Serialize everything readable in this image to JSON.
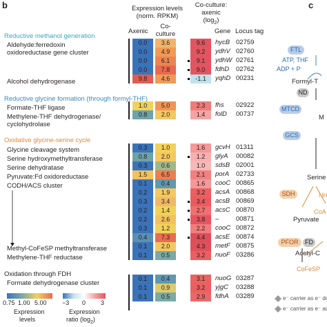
{
  "panel_b": "b",
  "panel_c": "c",
  "header": {
    "expr_title1": "Expression levels",
    "expr_title2": "(norm. RPKM)",
    "axenic": "Axenic",
    "coculture1": "Co-",
    "coculture2": "culture",
    "ratio1": "Co-culture:",
    "ratio2": "axenic",
    "ratio3": "(log",
    "ratio3_sub": "2",
    "ratio3_end": ")",
    "gene": "Gene",
    "locus": "Locus tag"
  },
  "sections": [
    {
      "title": "Reductive methanol generation",
      "color": "#3aa6c0"
    },
    {
      "title": "Reductive glycine formation (through formyl-THF)",
      "color": "#3a86c0"
    },
    {
      "title": "Oxidative glycine-serine cycle",
      "color": "#e08a3a"
    },
    {
      "title": "Oxidation through FDH",
      "color": "#231f20"
    }
  ],
  "labels": {
    "ald1": "Aldehyde:ferredoxin",
    "ald2": "oxidoreductase gene cluster",
    "adh": "Alcohol dehydrogenase",
    "fthl": "Formate-THF ligase",
    "mthfd1": "Methylene-THF dehydrogenase/",
    "mthfd2": "cyclohydrolase",
    "gcs": "Glycine cleavage system",
    "shmt": "Serine hydroxymethyltransferase",
    "sdh": "Serine dehydratase",
    "pfor": "Pyruvate:Fd oxidoreductase",
    "codh": "CODH/ACS cluster",
    "mtr": "Methyl-CoFeSP methyltransferase",
    "mthfr": "Methylene-THF reductase",
    "fdh": "Formate dehydrogenase cluster"
  },
  "rows": [
    {
      "axenic": "0.0",
      "cocult": "3.6",
      "ratio": "9.6",
      "gene": "hycB",
      "tag": "02759",
      "sig": false,
      "ac": "#3b73b9",
      "cc": "#f0b46a",
      "rc": "#e05560"
    },
    {
      "axenic": "0.0",
      "cocult": "4.9",
      "ratio": "9.2",
      "gene": "ydhV",
      "tag": "02760",
      "sig": false,
      "ac": "#3b73b9",
      "cc": "#f09a55",
      "rc": "#e05560"
    },
    {
      "axenic": "0.0",
      "cocult": "6.1",
      "ratio": "9.1",
      "gene": "ydhW",
      "tag": "02761",
      "sig": true,
      "ac": "#3b73b9",
      "cc": "#ec8550",
      "rc": "#e05560"
    },
    {
      "axenic": "0.0",
      "cocult": "7.8",
      "ratio": "9.0",
      "gene": "fdhD",
      "tag": "02762",
      "sig": true,
      "ac": "#3b73b9",
      "cc": "#e86a50",
      "rc": "#e05560"
    },
    {
      "axenic": "9.8",
      "cocult": "4.6",
      "ratio": "-1.1",
      "gene": "yqhD",
      "tag": "00231",
      "sig": true,
      "ac": "#e05c50",
      "cc": "#f09a55",
      "rc": "#bfe2ec"
    },
    {
      "axenic": "1.0",
      "cocult": "5.0",
      "ratio": "2.3",
      "gene": "fhs",
      "tag": "02922",
      "sig": false,
      "ac": "#f2d15a",
      "cc": "#ef9555",
      "rc": "#f07b7b"
    },
    {
      "axenic": "0.8",
      "cocult": "2.0",
      "ratio": "1.4",
      "gene": "folD",
      "tag": "00737",
      "sig": false,
      "ac": "#6ea3a8",
      "cc": "#f3c860",
      "rc": "#f5a3a3"
    },
    {
      "axenic": "0.3",
      "cocult": "1.0",
      "ratio": "1.6",
      "gene": "gcvH",
      "tag": "01311",
      "sig": false,
      "ac": "#3b73b9",
      "cc": "#f2d15a",
      "rc": "#f59898"
    },
    {
      "axenic": "0.8",
      "cocult": "2.0",
      "ratio": "1.2",
      "gene": "glyA",
      "tag": "00082",
      "sig": true,
      "ac": "#6ea3a8",
      "cc": "#f3c860",
      "rc": "#f7b0b0"
    },
    {
      "axenic": "0.3",
      "cocult": "0.6",
      "ratio": "1.0",
      "gene": "sdsB",
      "tag": "02001",
      "sig": false,
      "ac": "#3b73b9",
      "cc": "#9fb88a",
      "rc": "#f7b8b8"
    },
    {
      "axenic": "1.5",
      "cocult": "6.5",
      "ratio": "2.1",
      "gene": "porA",
      "tag": "02733",
      "sig": false,
      "ac": "#f2c25c",
      "cc": "#ec7e50",
      "rc": "#f28080"
    },
    {
      "axenic": "0.1",
      "cocult": "0.4",
      "ratio": "1.6",
      "gene": "cooC",
      "tag": "00865",
      "sig": false,
      "ac": "#3b73b9",
      "cc": "#5f98b0",
      "rc": "#f59898"
    },
    {
      "axenic": "0.2",
      "cocult": "1.9",
      "ratio": "3.2",
      "gene": "acsA",
      "tag": "00868",
      "sig": false,
      "ac": "#3b73b9",
      "cc": "#f3c860",
      "rc": "#ea6060"
    },
    {
      "axenic": "0.3",
      "cocult": "3.4",
      "ratio": "3.4",
      "gene": "acsB",
      "tag": "00869",
      "sig": true,
      "ac": "#3b73b9",
      "cc": "#f1b965",
      "rc": "#e85c60"
    },
    {
      "axenic": "0.2",
      "cocult": "1.4",
      "ratio": "2.7",
      "gene": "acsC",
      "tag": "00870",
      "sig": true,
      "ac": "#3b73b9",
      "cc": "#f2d15a",
      "rc": "#ee7070"
    },
    {
      "axenic": "0.2",
      "cocult": "2.6",
      "ratio": "3.8",
      "gene": "–",
      "tag": "00871",
      "sig": true,
      "ac": "#3b73b9",
      "cc": "#f2c25c",
      "rc": "#e45560"
    },
    {
      "axenic": "0.3",
      "cocult": "1.2",
      "ratio": "2.2",
      "gene": "cooC",
      "tag": "00872",
      "sig": false,
      "ac": "#3b73b9",
      "cc": "#f2d15a",
      "rc": "#f07d7d"
    },
    {
      "axenic": "0.4",
      "cocult": "7.3",
      "ratio": "4.4",
      "gene": "acsE",
      "tag": "00874",
      "sig": true,
      "ac": "#5a8fb2",
      "cc": "#e86c50",
      "rc": "#dc4f5a"
    },
    {
      "axenic": "0.1",
      "cocult": "2.0",
      "ratio": "4.3",
      "gene": "metF",
      "tag": "00875",
      "sig": false,
      "ac": "#3b73b9",
      "cc": "#f3c860",
      "rc": "#de505a"
    },
    {
      "axenic": "0.1",
      "cocult": "0.5",
      "ratio": "3.2",
      "gene": "nuoF",
      "tag": "03286",
      "sig": false,
      "ac": "#3b73b9",
      "cc": "#7aa9a6",
      "rc": "#ea6060"
    },
    {
      "axenic": "0.1",
      "cocult": "0.4",
      "ratio": "3.1",
      "gene": "nuoG",
      "tag": "03287",
      "sig": false,
      "ac": "#3b73b9",
      "cc": "#5f98b0",
      "rc": "#ea6262"
    },
    {
      "axenic": "0.1",
      "cocult": "0.9",
      "ratio": "3.2",
      "gene": "yjgC",
      "tag": "03288",
      "sig": false,
      "ac": "#3b73b9",
      "cc": "#dccb6a",
      "rc": "#ea6060"
    },
    {
      "axenic": "0.1",
      "cocult": "0.5",
      "ratio": "2.9",
      "gene": "fdhA",
      "tag": "03289",
      "sig": false,
      "ac": "#3b73b9",
      "cc": "#7aa9a6",
      "rc": "#ec6868"
    }
  ],
  "legend": {
    "expr_ticks": [
      "0.75",
      "1.00",
      "5.00"
    ],
    "expr_label1": "Expression",
    "expr_label2": "levels",
    "ratio_ticks": [
      "−3",
      "0",
      "3"
    ],
    "ratio_label1": "Expression",
    "ratio_label2": "ratio (log",
    "ratio_label_sub": "2",
    "ratio_label_end": ")"
  },
  "panel_c_labels": {
    "ftl": "FTL",
    "atp_thf": "ATP, THF",
    "adp": "ADP + P",
    "formyl": "Formyl-T",
    "nd": "ND",
    "mtcd": "MTCD",
    "m": "M",
    "gcs": "GCS",
    "serine": "Serine",
    "sdh": "SDH",
    "nh": "NH",
    "coa": "CoA",
    "pyruvate": "Pyruvate",
    "pfor": "PFOR",
    "fd": "FD",
    "acetyl": "Acetyl-C",
    "cofesp": "CoFeSP",
    "carrier1": "e⁻ carrier as e⁻ do",
    "carrier2": "e⁻ carrier as e⁻ ac"
  }
}
